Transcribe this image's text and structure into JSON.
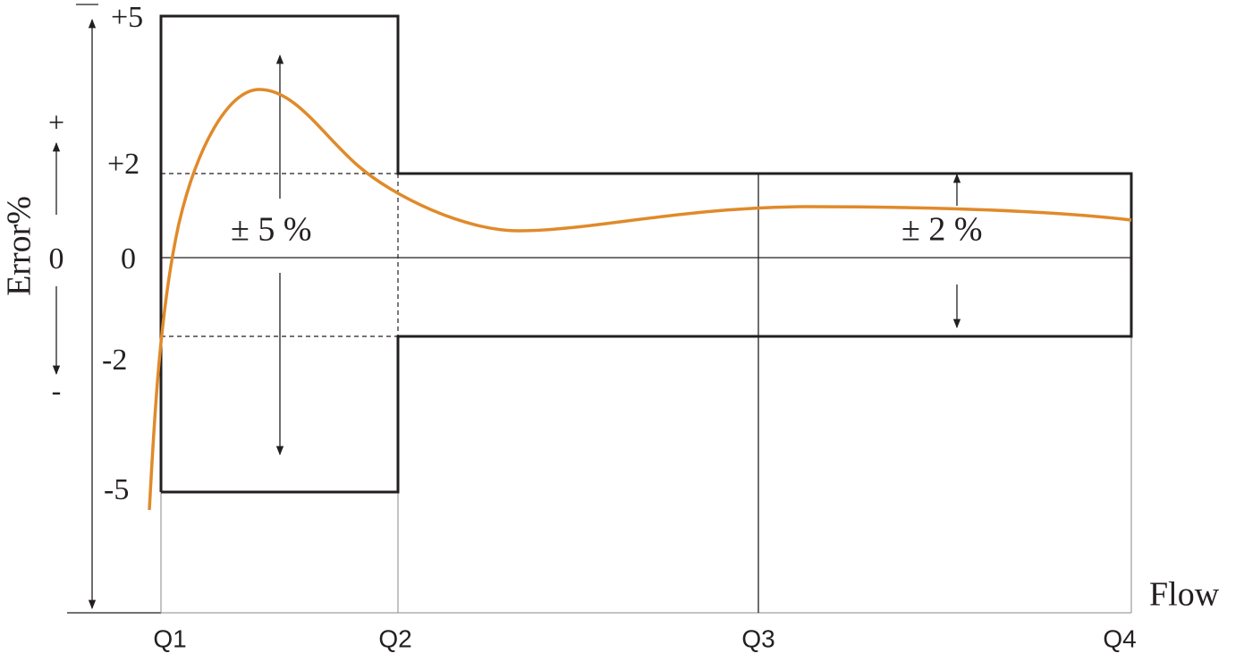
{
  "y_axis": {
    "title": "Error%",
    "ticks": [
      "+5",
      "+2",
      "0",
      "-2",
      "-5"
    ],
    "direction": [
      "+",
      "0",
      "-"
    ]
  },
  "x_axis": {
    "title": "Flow",
    "ticks": [
      "Q1",
      "Q2",
      "Q3",
      "Q4"
    ]
  },
  "annotations": [
    "± 5 %",
    "± 2 %"
  ]
}
